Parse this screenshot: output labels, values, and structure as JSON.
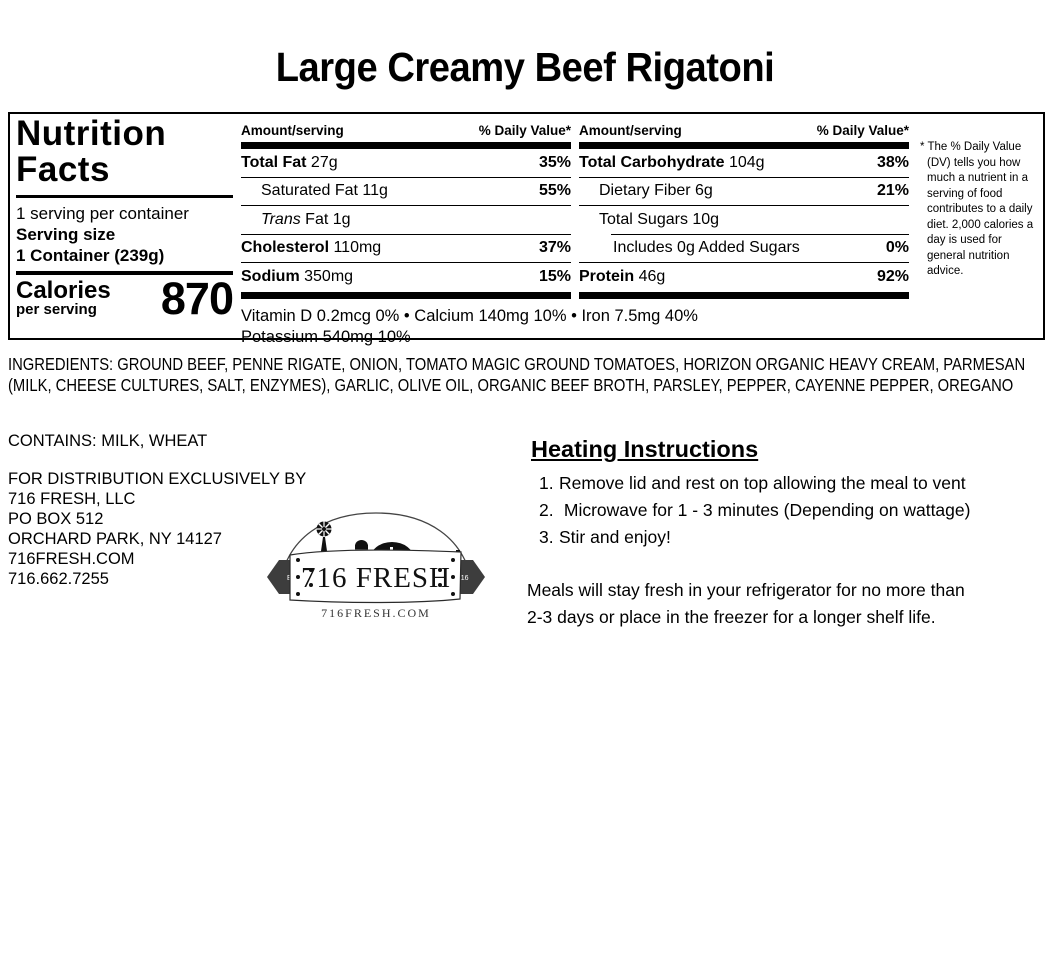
{
  "title": "Large Creamy Beef Rigatoni",
  "nutrition_facts": {
    "heading_line1": "Nutrition",
    "heading_line2": "Facts",
    "servings_per_container": "1 serving per container",
    "serving_size_label": "Serving size",
    "serving_size_value": "1 Container (239g)",
    "calories_label": "Calories",
    "calories_sublabel": "per serving",
    "calories_value": "870",
    "column_header_amount": "Amount/serving",
    "column_header_daily_value": "% Daily Value*",
    "columns": [
      {
        "rows": [
          {
            "bold": "Total Fat",
            "text": " 27g",
            "dv": "35%"
          },
          {
            "text": "Saturated Fat 11g",
            "dv": "55%",
            "indent": 1
          },
          {
            "italic": "Trans",
            "text": " Fat 1g",
            "dv": "",
            "indent": 1
          },
          {
            "bold": "Cholesterol",
            "text": " 110mg",
            "dv": "37%"
          },
          {
            "bold": "Sodium",
            "text": " 350mg",
            "dv": "15%",
            "last": true
          }
        ]
      },
      {
        "rows": [
          {
            "bold": "Total Carbohydrate",
            "text": " 104g",
            "dv": "38%"
          },
          {
            "text": "Dietary Fiber 6g",
            "dv": "21%",
            "indent": 1
          },
          {
            "text": "Total Sugars 10g",
            "dv": "",
            "indent": 1,
            "divider": "none"
          },
          {
            "text": "Includes 0g Added Sugars",
            "dv": "0%",
            "indent": 2,
            "divider": "indent-top"
          },
          {
            "bold": "Protein",
            "text": " 46g",
            "dv": "92%",
            "last": true
          }
        ]
      }
    ],
    "micronutrients_line1": "Vitamin D 0.2mcg 0% • Calcium 140mg 10% • Iron 7.5mg 40%",
    "micronutrients_line2": "Potassium 540mg 10%",
    "footnote": "* The % Daily Value (DV) tells you how much a nutrient in a serving of food contributes to a daily diet. 2,000 calories a day is used for general nutrition advice."
  },
  "ingredients": "INGREDIENTS: GROUND BEEF, PENNE RIGATE, ONION, TOMATO MAGIC GROUND TOMATOES, HORIZON ORGANIC HEAVY CREAM, PARMESAN (MILK, CHEESE CULTURES, SALT, ENZYMES), GARLIC, OLIVE OIL, ORGANIC BEEF BROTH, PARSLEY, PEPPER, CAYENNE PEPPER, OREGANO",
  "allergens": "CONTAINS: MILK, WHEAT",
  "distributor": {
    "lines": [
      "FOR DISTRIBUTION EXCLUSIVELY BY",
      "716 FRESH, LLC",
      "PO BOX 512",
      "ORCHARD PARK, NY 14127",
      "716FRESH.COM",
      "716.662.7255"
    ]
  },
  "logo": {
    "brand": "716 FRESH",
    "est_label": "EST.",
    "est_year": "2016",
    "website": "716FRESH.COM"
  },
  "heating_instructions": {
    "heading": "Heating Instructions",
    "steps": [
      "Remove lid and rest on top allowing the meal to vent",
      " Microwave for 1 - 3 minutes (Depending on wattage)",
      "Stir and enjoy!"
    ],
    "storage_note": "Meals will stay fresh in your refrigerator for no more than 2-3 days or place in the freezer for a longer shelf life."
  }
}
